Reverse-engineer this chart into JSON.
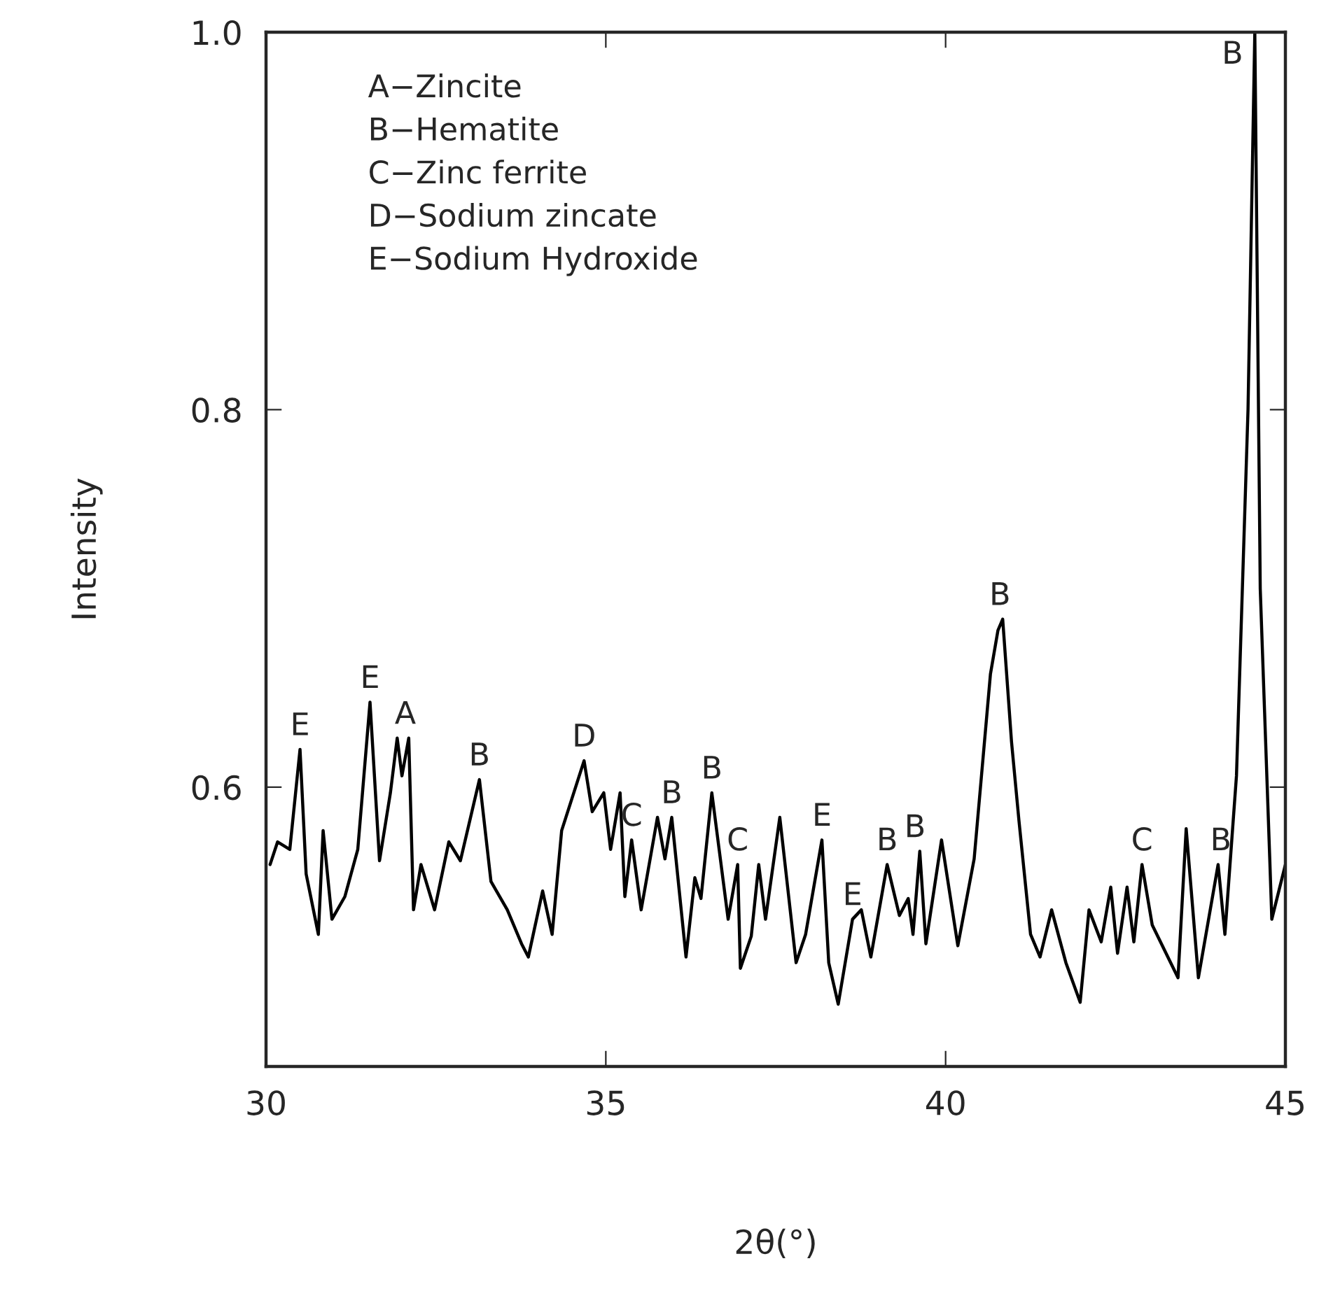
{
  "chart_data": {
    "type": "line",
    "xlabel": "2θ(°)",
    "ylabel": "Intensity",
    "xlim": [
      30,
      45
    ],
    "ylim": [
      0.452,
      1.0
    ],
    "xticks": [
      30,
      35,
      40,
      45
    ],
    "yticks": [
      {
        "value": 0.6,
        "label": "0.6"
      },
      {
        "value": 0.8,
        "label": "0.8"
      },
      {
        "value": 1.0,
        "label": "1.0"
      }
    ],
    "grid": false,
    "legend": false,
    "series": [
      {
        "color": "#000000",
        "x": [
          30.06,
          30.17,
          30.35,
          30.5,
          30.59,
          30.77,
          30.84,
          30.97,
          31.16,
          31.35,
          31.53,
          31.67,
          31.83,
          31.93,
          32.0,
          32.1,
          32.17,
          32.28,
          32.48,
          32.69,
          32.86,
          33.14,
          33.31,
          33.55,
          33.76,
          33.86,
          34.07,
          34.21,
          34.35,
          34.68,
          34.8,
          34.97,
          35.07,
          35.21,
          35.28,
          35.38,
          35.52,
          35.76,
          35.87,
          35.97,
          36.18,
          36.31,
          36.4,
          36.56,
          36.8,
          36.94,
          36.98,
          37.14,
          37.25,
          37.35,
          37.56,
          37.8,
          37.94,
          38.18,
          38.28,
          38.42,
          38.63,
          38.76,
          38.9,
          39.14,
          39.32,
          39.45,
          39.52,
          39.62,
          39.71,
          39.94,
          40.18,
          40.42,
          40.66,
          40.77,
          40.84,
          40.97,
          41.08,
          41.25,
          41.39,
          41.56,
          41.77,
          41.98,
          42.11,
          42.29,
          42.43,
          42.53,
          42.67,
          42.77,
          42.89,
          43.04,
          43.42,
          43.54,
          43.72,
          44.01,
          44.11,
          44.28,
          44.45,
          44.55,
          44.63,
          44.77,
          44.8,
          45.0
        ],
        "values": [
          0.559,
          0.571,
          0.567,
          0.62,
          0.554,
          0.522,
          0.577,
          0.53,
          0.542,
          0.567,
          0.645,
          0.561,
          0.597,
          0.626,
          0.606,
          0.626,
          0.535,
          0.559,
          0.535,
          0.571,
          0.561,
          0.604,
          0.55,
          0.535,
          0.517,
          0.51,
          0.545,
          0.522,
          0.577,
          0.614,
          0.587,
          0.597,
          0.567,
          0.597,
          0.542,
          0.572,
          0.535,
          0.584,
          0.562,
          0.584,
          0.51,
          0.552,
          0.541,
          0.597,
          0.53,
          0.559,
          0.504,
          0.521,
          0.559,
          0.53,
          0.584,
          0.507,
          0.522,
          0.572,
          0.507,
          0.485,
          0.53,
          0.535,
          0.51,
          0.559,
          0.532,
          0.541,
          0.522,
          0.566,
          0.517,
          0.572,
          0.516,
          0.562,
          0.66,
          0.683,
          0.689,
          0.624,
          0.582,
          0.522,
          0.51,
          0.535,
          0.507,
          0.486,
          0.535,
          0.518,
          0.547,
          0.512,
          0.547,
          0.518,
          0.559,
          0.527,
          0.499,
          0.578,
          0.499,
          0.559,
          0.522,
          0.606,
          0.8,
          1.0,
          0.705,
          0.562,
          0.53,
          0.559
        ]
      }
    ],
    "annotations": [
      "A−Zincite\nB−Hematite\nC−Zinc ferrite\nD−Sodium zincate\nE−Sodium Hydroxide",
      {
        "text": "E",
        "x": 30.5,
        "y": 0.62
      },
      {
        "text": "E",
        "x": 31.53,
        "y": 0.645
      },
      {
        "text": "A",
        "x": 32.05,
        "y": 0.626
      },
      {
        "text": "B",
        "x": 33.14,
        "y": 0.604
      },
      {
        "text": "D",
        "x": 34.68,
        "y": 0.614
      },
      {
        "text": "C",
        "x": 35.38,
        "y": 0.572
      },
      {
        "text": "B",
        "x": 35.97,
        "y": 0.584
      },
      {
        "text": "B",
        "x": 36.56,
        "y": 0.597
      },
      {
        "text": "C",
        "x": 36.94,
        "y": 0.559
      },
      {
        "text": "E",
        "x": 38.18,
        "y": 0.572
      },
      {
        "text": "E",
        "x": 38.63,
        "y": 0.53
      },
      {
        "text": "B",
        "x": 39.14,
        "y": 0.559
      },
      {
        "text": "B",
        "x": 39.55,
        "y": 0.566
      },
      {
        "text": "B",
        "x": 40.8,
        "y": 0.689
      },
      {
        "text": "C",
        "x": 42.89,
        "y": 0.559
      },
      {
        "text": "B",
        "x": 44.05,
        "y": 0.559
      },
      {
        "text": "B",
        "x": 44.55,
        "y": 1.0
      }
    ]
  }
}
